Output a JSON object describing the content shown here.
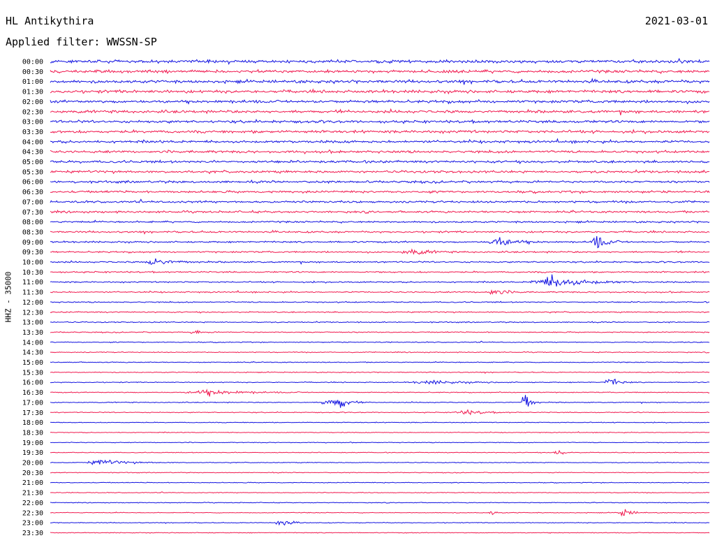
{
  "header": {
    "station": "HL Antikythira",
    "date": "2021-03-01",
    "filter_label": "Applied filter: WWSSN-SP"
  },
  "chart_data": {
    "type": "line",
    "title": "HL Antikythira",
    "ylabel": "HHZ - 35000",
    "row_labels": [
      "00:00",
      "00:30",
      "01:00",
      "01:30",
      "02:00",
      "02:30",
      "03:00",
      "03:30",
      "04:00",
      "04:30",
      "05:00",
      "05:30",
      "06:00",
      "06:30",
      "07:00",
      "07:30",
      "08:00",
      "08:30",
      "09:00",
      "09:30",
      "10:00",
      "10:30",
      "11:00",
      "11:30",
      "12:00",
      "12:30",
      "13:00",
      "13:30",
      "14:00",
      "14:30",
      "15:00",
      "15:30",
      "16:00",
      "16:30",
      "17:00",
      "17:30",
      "18:00",
      "18:30",
      "19:00",
      "19:30",
      "20:00",
      "20:30",
      "21:00",
      "21:30",
      "22:00",
      "22:30",
      "23:00",
      "23:30"
    ],
    "colors": [
      "#1010e0",
      "#f0184e"
    ],
    "noise_level": [
      1.0,
      1.0,
      1.0,
      1.0,
      0.95,
      0.95,
      0.9,
      0.9,
      0.85,
      0.85,
      0.8,
      0.8,
      0.75,
      0.75,
      0.7,
      0.7,
      0.6,
      0.6,
      0.55,
      0.55,
      0.5,
      0.5,
      0.45,
      0.45,
      0.4,
      0.4,
      0.35,
      0.35,
      0.3,
      0.3,
      0.3,
      0.3,
      0.3,
      0.3,
      0.3,
      0.3,
      0.25,
      0.25,
      0.25,
      0.25,
      0.25,
      0.25,
      0.25,
      0.25,
      0.25,
      0.25,
      0.25,
      0.25
    ],
    "events": [
      {
        "row": 18,
        "x": 0.68,
        "amp": 2.2,
        "width": 0.02
      },
      {
        "row": 18,
        "x": 0.83,
        "amp": 3.0,
        "width": 0.012
      },
      {
        "row": 19,
        "x": 0.55,
        "amp": 1.3,
        "width": 0.02
      },
      {
        "row": 20,
        "x": 0.16,
        "amp": 1.8,
        "width": 0.02
      },
      {
        "row": 22,
        "x": 0.76,
        "amp": 3.0,
        "width": 0.035
      },
      {
        "row": 23,
        "x": 0.67,
        "amp": 1.5,
        "width": 0.015
      },
      {
        "row": 27,
        "x": 0.22,
        "amp": 1.3,
        "width": 0.008
      },
      {
        "row": 32,
        "x": 0.85,
        "amp": 2.5,
        "width": 0.01
      },
      {
        "row": 32,
        "x": 0.58,
        "amp": 0.8,
        "width": 0.04
      },
      {
        "row": 33,
        "x": 0.24,
        "amp": 1.2,
        "width": 0.04
      },
      {
        "row": 34,
        "x": 0.42,
        "amp": 2.5,
        "width": 0.01
      },
      {
        "row": 34,
        "x": 0.44,
        "amp": 2.8,
        "width": 0.01
      },
      {
        "row": 34,
        "x": 0.72,
        "amp": 6.0,
        "width": 0.006
      },
      {
        "row": 35,
        "x": 0.63,
        "amp": 1.2,
        "width": 0.02
      },
      {
        "row": 39,
        "x": 0.77,
        "amp": 1.4,
        "width": 0.008
      },
      {
        "row": 40,
        "x": 0.08,
        "amp": 1.2,
        "width": 0.03
      },
      {
        "row": 45,
        "x": 0.67,
        "amp": 1.3,
        "width": 0.005
      },
      {
        "row": 45,
        "x": 0.87,
        "amp": 2.0,
        "width": 0.01
      },
      {
        "row": 46,
        "x": 0.35,
        "amp": 2.2,
        "width": 0.01
      }
    ]
  }
}
